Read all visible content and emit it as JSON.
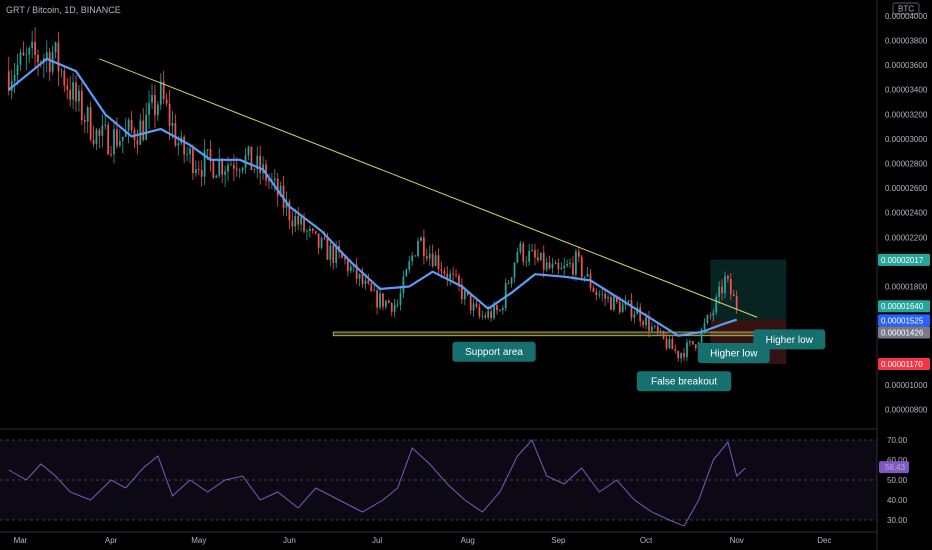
{
  "header": {
    "title": "GRT / Bitcoin, 1D, BINANCE",
    "currency": "BTC"
  },
  "colors": {
    "background": "#000000",
    "up": "#26a69a",
    "down": "#ef5350",
    "ma": "#5b9cf6",
    "trendline": "#d4d46a",
    "support": "#c8c864",
    "rsi": "#7e57c2",
    "note_box": "#16706f"
  },
  "chart_data": [
    {
      "type": "candlestick",
      "title": "GRT / Bitcoin, 1D, BINANCE",
      "x_tick_labels": [
        "Mar",
        "Apr",
        "May",
        "Jun",
        "Jul",
        "Aug",
        "Sep",
        "Oct",
        "Nov",
        "Dec"
      ],
      "y_tick_labels": [
        "0.00004000",
        "0.00003800",
        "0.00003600",
        "0.00003400",
        "0.00003200",
        "0.00003000",
        "0.00002800",
        "0.00002600",
        "0.00002400",
        "0.00002200",
        "0.00001800",
        "0.00001000",
        "0.00000800"
      ],
      "y_range": [
        6.5e-06,
        4.08e-05
      ],
      "grid": false,
      "close_trend": [
        {
          "x": "2021-02-25",
          "close": 3.55e-05
        },
        {
          "x": "2021-03-05",
          "close": 3.65e-05
        },
        {
          "x": "2021-03-12",
          "close": 3.7e-05
        },
        {
          "x": "2021-03-20",
          "close": 3.3e-05
        },
        {
          "x": "2021-03-28",
          "close": 3e-05
        },
        {
          "x": "2021-04-05",
          "close": 3.02e-05
        },
        {
          "x": "2021-04-12",
          "close": 3.1e-05
        },
        {
          "x": "2021-04-18",
          "close": 3.35e-05
        },
        {
          "x": "2021-04-25",
          "close": 2.9e-05
        },
        {
          "x": "2021-05-02",
          "close": 2.8e-05
        },
        {
          "x": "2021-05-10",
          "close": 2.8e-05
        },
        {
          "x": "2021-05-16",
          "close": 2.85e-05
        },
        {
          "x": "2021-05-24",
          "close": 2.7e-05
        },
        {
          "x": "2021-06-01",
          "close": 2.4e-05
        },
        {
          "x": "2021-06-10",
          "close": 2.15e-05
        },
        {
          "x": "2021-06-20",
          "close": 2e-05
        },
        {
          "x": "2021-06-30",
          "close": 1.7e-05
        },
        {
          "x": "2021-07-08",
          "close": 1.65e-05
        },
        {
          "x": "2021-07-15",
          "close": 2.2e-05
        },
        {
          "x": "2021-07-22",
          "close": 2e-05
        },
        {
          "x": "2021-07-30",
          "close": 1.75e-05
        },
        {
          "x": "2021-08-05",
          "close": 1.55e-05
        },
        {
          "x": "2021-08-12",
          "close": 1.6e-05
        },
        {
          "x": "2021-08-18",
          "close": 2.1e-05
        },
        {
          "x": "2021-08-25",
          "close": 2e-05
        },
        {
          "x": "2021-09-01",
          "close": 1.9e-05
        },
        {
          "x": "2021-09-07",
          "close": 2e-05
        },
        {
          "x": "2021-09-14",
          "close": 1.75e-05
        },
        {
          "x": "2021-09-21",
          "close": 1.65e-05
        },
        {
          "x": "2021-09-28",
          "close": 1.6e-05
        },
        {
          "x": "2021-10-05",
          "close": 1.4e-05
        },
        {
          "x": "2021-10-12",
          "close": 1.25e-05
        },
        {
          "x": "2021-10-18",
          "close": 1.35e-05
        },
        {
          "x": "2021-10-24",
          "close": 1.6e-05
        },
        {
          "x": "2021-10-28",
          "close": 1.85e-05
        },
        {
          "x": "2021-11-01",
          "close": 1.64e-05
        }
      ],
      "moving_average": [
        {
          "x": "2021-02-25",
          "value": 3.4e-05
        },
        {
          "x": "2021-03-10",
          "value": 3.65e-05
        },
        {
          "x": "2021-03-20",
          "value": 3.55e-05
        },
        {
          "x": "2021-03-30",
          "value": 3.2e-05
        },
        {
          "x": "2021-04-08",
          "value": 3.02e-05
        },
        {
          "x": "2021-04-18",
          "value": 3.08e-05
        },
        {
          "x": "2021-04-28",
          "value": 2.95e-05
        },
        {
          "x": "2021-05-05",
          "value": 2.83e-05
        },
        {
          "x": "2021-05-15",
          "value": 2.83e-05
        },
        {
          "x": "2021-05-23",
          "value": 2.75e-05
        },
        {
          "x": "2021-06-01",
          "value": 2.45e-05
        },
        {
          "x": "2021-06-12",
          "value": 2.25e-05
        },
        {
          "x": "2021-06-22",
          "value": 2e-05
        },
        {
          "x": "2021-07-02",
          "value": 1.78e-05
        },
        {
          "x": "2021-07-12",
          "value": 1.8e-05
        },
        {
          "x": "2021-07-20",
          "value": 1.92e-05
        },
        {
          "x": "2021-07-30",
          "value": 1.8e-05
        },
        {
          "x": "2021-08-08",
          "value": 1.62e-05
        },
        {
          "x": "2021-08-16",
          "value": 1.75e-05
        },
        {
          "x": "2021-08-24",
          "value": 1.9e-05
        },
        {
          "x": "2021-09-03",
          "value": 1.88e-05
        },
        {
          "x": "2021-09-12",
          "value": 1.85e-05
        },
        {
          "x": "2021-09-22",
          "value": 1.7e-05
        },
        {
          "x": "2021-10-02",
          "value": 1.55e-05
        },
        {
          "x": "2021-10-12",
          "value": 1.4e-05
        },
        {
          "x": "2021-10-20",
          "value": 1.43e-05
        },
        {
          "x": "2021-10-28",
          "value": 1.5e-05
        },
        {
          "x": "2021-11-01",
          "value": 1.53e-05
        }
      ],
      "trendline": [
        {
          "x": "2021-03-28",
          "y": 3.65e-05
        },
        {
          "x": "2021-11-08",
          "y": 1.55e-05
        }
      ],
      "support_area": {
        "from": "2021-06-16",
        "to": "2021-11-13",
        "low": 1.4e-05,
        "high": 1.43e-05
      },
      "price_tags": [
        {
          "value": "0.00002017",
          "color": "#26a69a"
        },
        {
          "value": "0.00001640",
          "color": "#26a69a"
        },
        {
          "value": "0.00001525",
          "color": "#2962ff"
        },
        {
          "value": "0.00001426",
          "color": "#787b86"
        },
        {
          "value": "0.00001170",
          "color": "#f23645"
        }
      ],
      "annotations": [
        {
          "text": "Support area",
          "x": "2021-08-10",
          "y": 1.27e-05
        },
        {
          "text": "False breakout",
          "x": "2021-10-14",
          "y": 1.03e-05
        },
        {
          "text": "Higher low",
          "x": "2021-10-31",
          "y": 1.26e-05
        },
        {
          "text": "Higher low",
          "x": "2021-11-19",
          "y": 1.37e-05
        }
      ],
      "position_tool": {
        "from": "2021-10-23",
        "to": "2021-11-18",
        "entry": 1.53e-05,
        "target": 2.02e-05,
        "stop": 1.17e-05
      }
    },
    {
      "type": "line",
      "title": "",
      "y_tick_labels": [
        "70.00",
        "60.00",
        "50.00",
        "40.00",
        "30.00"
      ],
      "y_range": [
        25,
        75
      ],
      "bands": [
        70,
        50,
        30
      ],
      "current_value_label": "56.43",
      "series": [
        {
          "points": [
            {
              "x": "2021-02-25",
              "y": 55
            },
            {
              "x": "2021-03-03",
              "y": 50
            },
            {
              "x": "2021-03-08",
              "y": 58
            },
            {
              "x": "2021-03-13",
              "y": 52
            },
            {
              "x": "2021-03-18",
              "y": 44
            },
            {
              "x": "2021-03-25",
              "y": 40
            },
            {
              "x": "2021-04-01",
              "y": 50
            },
            {
              "x": "2021-04-06",
              "y": 46
            },
            {
              "x": "2021-04-12",
              "y": 56
            },
            {
              "x": "2021-04-17",
              "y": 62
            },
            {
              "x": "2021-04-22",
              "y": 42
            },
            {
              "x": "2021-04-28",
              "y": 50
            },
            {
              "x": "2021-05-04",
              "y": 44
            },
            {
              "x": "2021-05-10",
              "y": 50
            },
            {
              "x": "2021-05-16",
              "y": 52
            },
            {
              "x": "2021-05-22",
              "y": 40
            },
            {
              "x": "2021-05-28",
              "y": 44
            },
            {
              "x": "2021-06-04",
              "y": 36
            },
            {
              "x": "2021-06-10",
              "y": 46
            },
            {
              "x": "2021-06-18",
              "y": 40
            },
            {
              "x": "2021-06-26",
              "y": 34
            },
            {
              "x": "2021-07-03",
              "y": 40
            },
            {
              "x": "2021-07-08",
              "y": 46
            },
            {
              "x": "2021-07-13",
              "y": 66
            },
            {
              "x": "2021-07-19",
              "y": 58
            },
            {
              "x": "2021-07-25",
              "y": 48
            },
            {
              "x": "2021-07-31",
              "y": 40
            },
            {
              "x": "2021-08-06",
              "y": 34
            },
            {
              "x": "2021-08-12",
              "y": 44
            },
            {
              "x": "2021-08-18",
              "y": 62
            },
            {
              "x": "2021-08-23",
              "y": 70
            },
            {
              "x": "2021-08-28",
              "y": 52
            },
            {
              "x": "2021-09-03",
              "y": 48
            },
            {
              "x": "2021-09-09",
              "y": 56
            },
            {
              "x": "2021-09-15",
              "y": 44
            },
            {
              "x": "2021-09-21",
              "y": 50
            },
            {
              "x": "2021-09-27",
              "y": 40
            },
            {
              "x": "2021-10-03",
              "y": 34
            },
            {
              "x": "2021-10-09",
              "y": 30
            },
            {
              "x": "2021-10-14",
              "y": 27
            },
            {
              "x": "2021-10-19",
              "y": 40
            },
            {
              "x": "2021-10-24",
              "y": 60
            },
            {
              "x": "2021-10-29",
              "y": 69
            },
            {
              "x": "2021-11-01",
              "y": 52
            },
            {
              "x": "2021-11-04",
              "y": 56
            }
          ]
        }
      ]
    }
  ]
}
